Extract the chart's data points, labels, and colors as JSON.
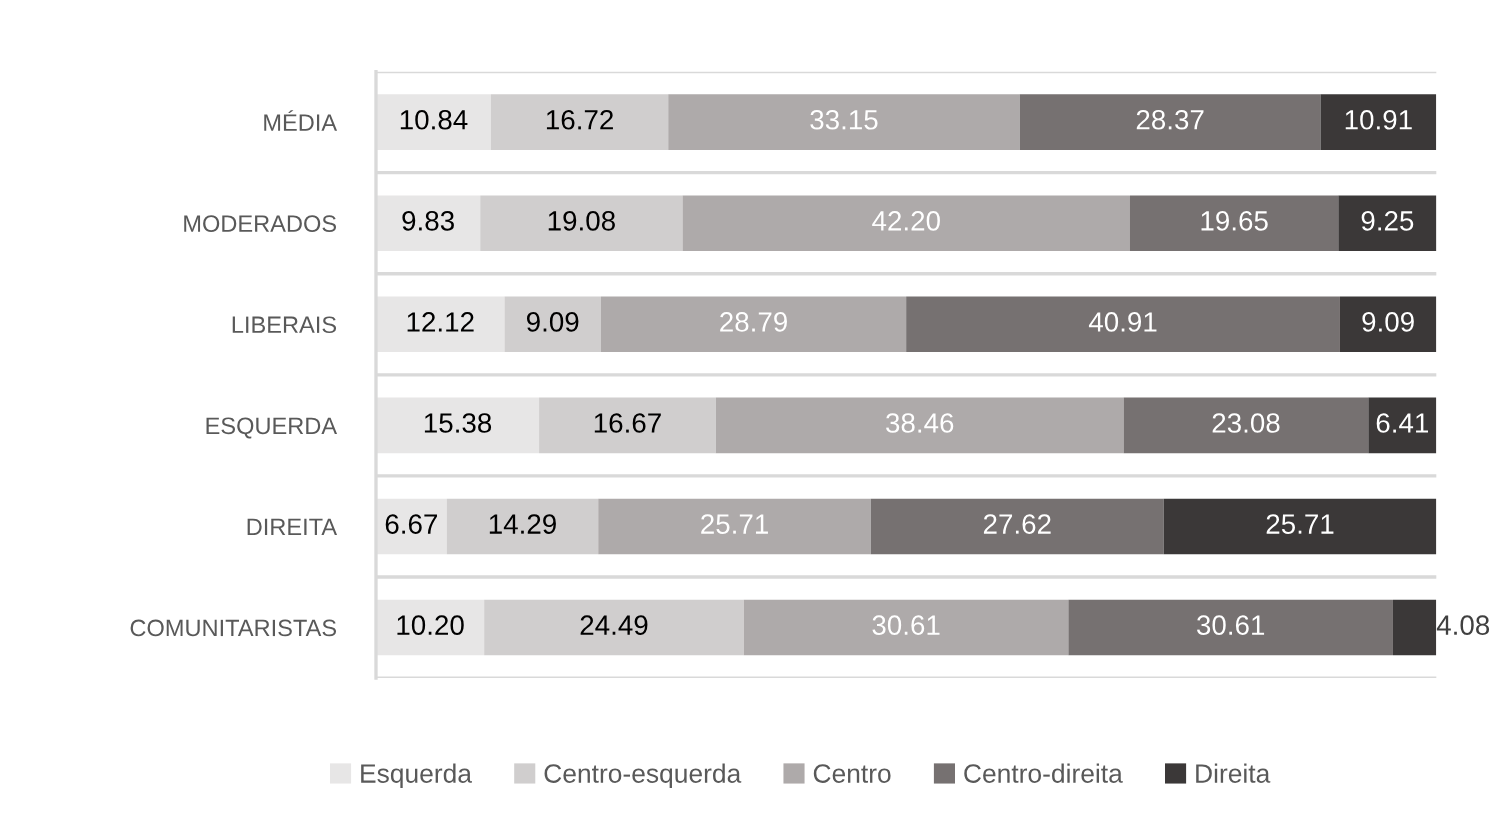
{
  "chart_data": {
    "type": "bar",
    "orientation": "horizontal",
    "stacked": true,
    "categories": [
      "MÉDIA",
      "MODERADOS",
      "LIBERAIS",
      "ESQUERDA",
      "DIREITA",
      "COMUNITARISTAS"
    ],
    "xlim": [
      0,
      100
    ],
    "tick_labels": "y",
    "grid": "y",
    "legend": "bottom",
    "series": [
      {
        "name": "Esquerda",
        "color": "#e7e6e6",
        "values": [
          10.84,
          9.83,
          12.12,
          15.38,
          6.67,
          10.2
        ],
        "value_labels": [
          "10.84",
          "9.83",
          "12.12",
          "15.38",
          "6.67",
          "10.20"
        ]
      },
      {
        "name": "Centro-esquerda",
        "color": "#d0cece",
        "values": [
          16.72,
          19.08,
          9.09,
          16.67,
          14.29,
          24.49
        ],
        "value_labels": [
          "16.72",
          "19.08",
          "9.09",
          "16.67",
          "14.29",
          "24.49"
        ]
      },
      {
        "name": "Centro",
        "color": "#aeaaaa",
        "values": [
          33.15,
          42.2,
          28.79,
          38.46,
          25.71,
          30.61
        ],
        "value_labels": [
          "33.15",
          "42.20",
          "28.79",
          "38.46",
          "25.71",
          "30.61"
        ]
      },
      {
        "name": "Centro-direita",
        "color": "#767171",
        "values": [
          28.37,
          19.65,
          40.91,
          23.08,
          27.62,
          30.61
        ],
        "value_labels": [
          "28.37",
          "19.65",
          "40.91",
          "23.08",
          "27.62",
          "30.61"
        ]
      },
      {
        "name": "Direita",
        "color": "#3b3838",
        "values": [
          10.91,
          9.25,
          9.09,
          6.41,
          25.71,
          4.08
        ],
        "value_labels": [
          "10.91",
          "9.25",
          "9.09",
          "6.41",
          "25.71",
          "4.08"
        ]
      }
    ]
  }
}
